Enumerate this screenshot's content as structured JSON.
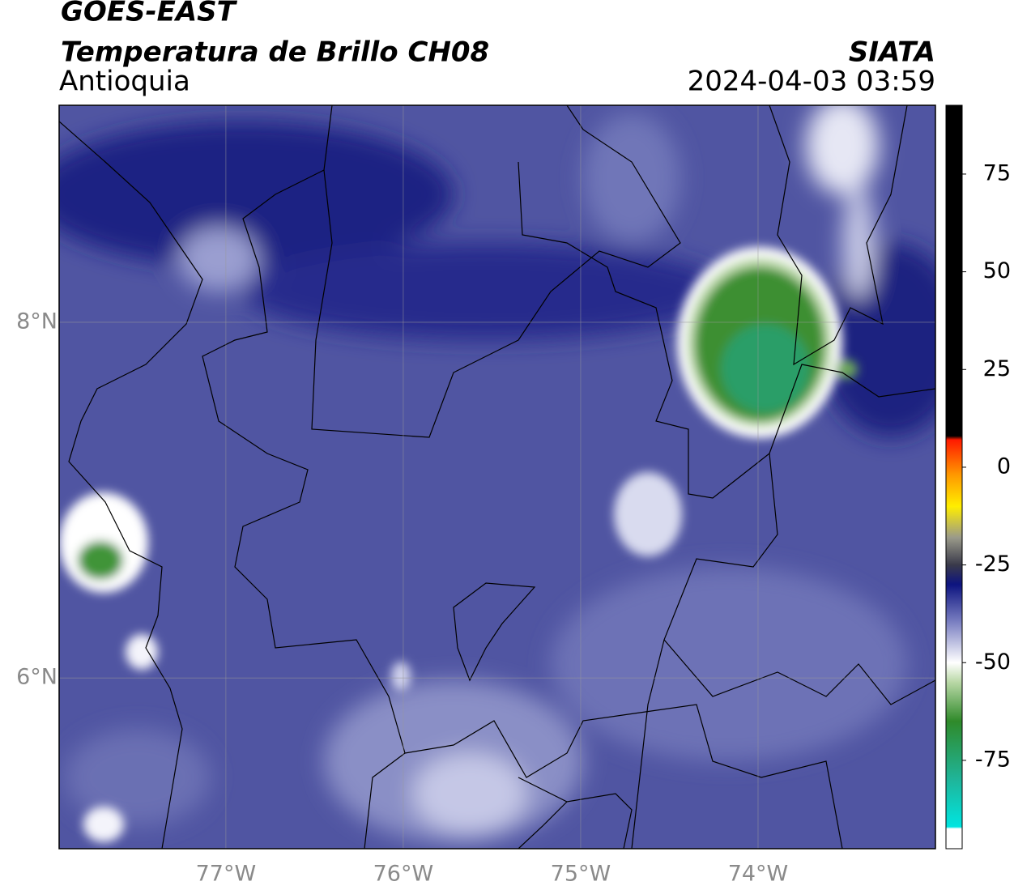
{
  "header": {
    "line1": "GOES-EAST",
    "title": "Temperatura de Brillo CH08",
    "region": "Antioquia",
    "source": "SIATA",
    "timestamp": "2024-04-03 03:59"
  },
  "map": {
    "xlim": [
      -77.94,
      -73.0
    ],
    "ylim": [
      5.04,
      9.22
    ],
    "xticks": [
      {
        "value": -77,
        "label": "77°W"
      },
      {
        "value": -76,
        "label": "76°W"
      },
      {
        "value": -75,
        "label": "75°W"
      },
      {
        "value": -74,
        "label": "74°W"
      }
    ],
    "yticks": [
      {
        "value": 8,
        "label": "8°N"
      },
      {
        "value": 6,
        "label": "6°N"
      }
    ],
    "grid": true
  },
  "colorbar": {
    "lim": [
      -97.6,
      92.6
    ],
    "ticks": [
      75,
      50,
      25,
      0,
      -25,
      -50,
      -75
    ],
    "stops": [
      {
        "value": -97.6,
        "color": "#ffffff"
      },
      {
        "value": -92.5,
        "color": "#ffffff"
      },
      {
        "value": -92,
        "color": "#00e5e0"
      },
      {
        "value": -80,
        "color": "#1fb59a"
      },
      {
        "value": -65,
        "color": "#2f8a2a"
      },
      {
        "value": -55,
        "color": "#b9d8a6"
      },
      {
        "value": -50,
        "color": "#ffffff"
      },
      {
        "value": -40,
        "color": "#7f84c4"
      },
      {
        "value": -30,
        "color": "#0d1480"
      },
      {
        "value": -25,
        "color": "#3a3a4a"
      },
      {
        "value": -18,
        "color": "#9a9a8a"
      },
      {
        "value": -10,
        "color": "#ffee00"
      },
      {
        "value": -2,
        "color": "#ff9900"
      },
      {
        "value": 7,
        "color": "#ff1a00"
      },
      {
        "value": 8,
        "color": "#000000"
      },
      {
        "value": 92.6,
        "color": "#000000"
      }
    ]
  }
}
